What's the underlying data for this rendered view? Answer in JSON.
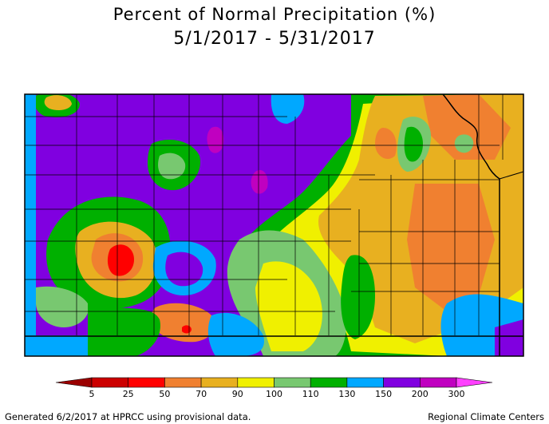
{
  "title": {
    "line1": "Percent of Normal Precipitation (%)",
    "line2": "5/1/2017 - 5/31/2017"
  },
  "legend": {
    "breaks": [
      "5",
      "25",
      "50",
      "70",
      "90",
      "100",
      "110",
      "130",
      "150",
      "200",
      "300"
    ],
    "colors": [
      "#9b0000",
      "#cc0000",
      "#ff0000",
      "#f08030",
      "#e8b020",
      "#f0f000",
      "#78c870",
      "#00b000",
      "#00a8ff",
      "#8000e0",
      "#c000c0",
      "#ff40ff"
    ]
  },
  "footer": {
    "left": "Generated 6/2/2017 at HPRCC using provisional data.",
    "right": "Regional Climate Centers"
  }
}
